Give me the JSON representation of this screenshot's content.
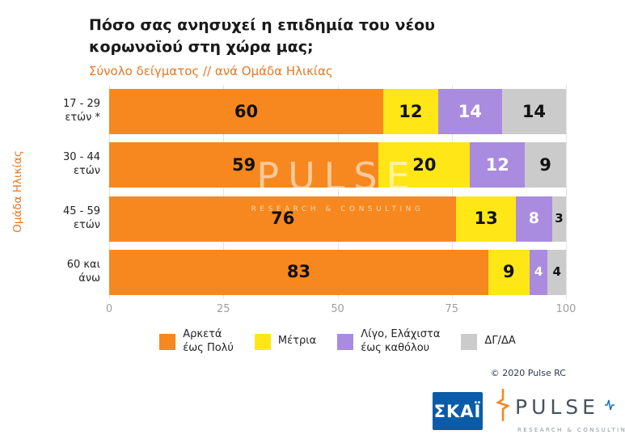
{
  "title": {
    "lines": [
      "Πόσο σας ανησυχεί η επιδημία του νέου",
      "κορωνοϊού στη χώρα μας;"
    ],
    "subtitle": "Σύνολο δείγματος // ανά Ομάδα Ηλικίας"
  },
  "chart_data": {
    "type": "bar",
    "orientation": "horizontal",
    "stacked": true,
    "title": "Πόσο σας ανησυχεί η επιδημία του νέου κορωνοϊού στη χώρα μας;",
    "subtitle": "Σύνολο δείγματος // ανά Ομάδα Ηλικίας",
    "ylabel": "Ομάδα Ηλικίας",
    "xlabel": "",
    "categories": [
      "17 - 29 ετών *",
      "30 - 44 ετών",
      "45 - 59 ετών",
      "60 και άνω"
    ],
    "categories_lines": [
      [
        "17 - 29",
        "ετών *"
      ],
      [
        "30 - 44",
        "ετών"
      ],
      [
        "45 - 59",
        "ετών"
      ],
      [
        "60 και",
        "άνω"
      ]
    ],
    "series": [
      {
        "name": "Αρκετά έως Πολύ",
        "color": "#F6881F",
        "label_color": "#111111",
        "values": [
          60,
          59,
          76,
          83
        ]
      },
      {
        "name": "Μέτρια",
        "color": "#FFE616",
        "label_color": "#111111",
        "values": [
          12,
          20,
          13,
          9
        ]
      },
      {
        "name": "Λίγο, Ελάχιστα έως καθόλου",
        "color": "#A98CE0",
        "label_color": "#FFFFFF",
        "values": [
          14,
          12,
          8,
          4
        ]
      },
      {
        "name": "ΔΓ/ΔΑ",
        "color": "#CBCBCB",
        "label_color": "#111111",
        "values": [
          14,
          9,
          3,
          4
        ]
      }
    ],
    "xlim": [
      0,
      100
    ],
    "xticks": [
      0,
      25,
      50,
      75,
      100
    ],
    "grid": true,
    "legend_position": "bottom"
  },
  "legend": {
    "items": [
      {
        "label_lines": [
          "Αρκετά",
          "έως Πολύ"
        ],
        "color": "#F6881F"
      },
      {
        "label_lines": [
          "Μέτρια"
        ],
        "color": "#FFE616"
      },
      {
        "label_lines": [
          "Λίγο, Ελάχιστα",
          "έως καθόλου"
        ],
        "color": "#A98CE0"
      },
      {
        "label_lines": [
          "ΔΓ/ΔΑ"
        ],
        "color": "#CBCBCB"
      }
    ]
  },
  "watermark": {
    "line1": "PULSE",
    "line2": "RESEARCH & CONSULTING"
  },
  "footer": {
    "copyright": "© 2020 Pulse RC",
    "skai_logo": "ΣΚΑΪ",
    "pulse_logo": "PULSE",
    "pulse_sub": "RESEARCH & CONSULTING"
  }
}
